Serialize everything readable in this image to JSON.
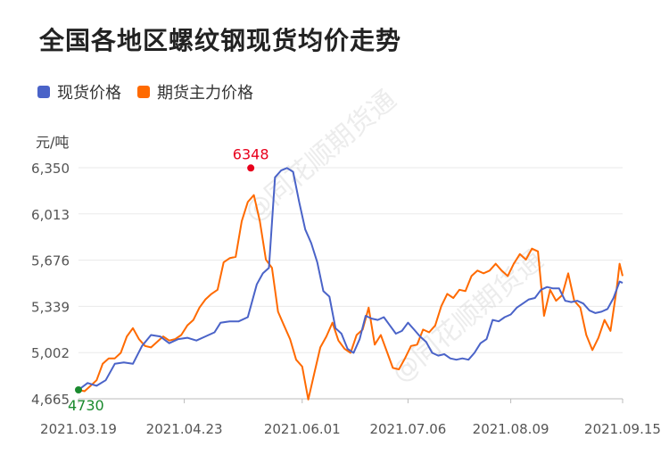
{
  "title": "全国各地区螺纹钢现货均价走势",
  "legend": [
    {
      "name": "现货价格",
      "color": "#4a63c8"
    },
    {
      "name": "期货主力价格",
      "color": "#ff6a00"
    }
  ],
  "unit": "元/吨",
  "watermarks": [
    "@同花顺期货通",
    "@同花顺期货通"
  ],
  "chart_data": {
    "type": "line",
    "ylim": [
      4665,
      6350
    ],
    "y_ticks": [
      "4,665",
      "5,002",
      "5,339",
      "5,676",
      "6,013",
      "6,350"
    ],
    "x_ticks": [
      "2021.03.19",
      "2021.04.23",
      "2021.06.01",
      "2021.07.06",
      "2021.08.09",
      "2021.09.15"
    ],
    "x_tick_index": [
      0,
      35,
      74,
      109,
      143,
      180
    ],
    "n_points": 181,
    "annotations": {
      "max": {
        "label": "6348",
        "series": 0,
        "index": 57,
        "value": 6348,
        "color": "#e8001c"
      },
      "min": {
        "label": "4730",
        "series": 0,
        "index": 0,
        "value": 4730,
        "color": "#1a8a2e"
      }
    },
    "series": [
      {
        "name": "现货价格",
        "color": "#4a63c8",
        "points": [
          [
            0,
            4730
          ],
          [
            3,
            4780
          ],
          [
            6,
            4760
          ],
          [
            9,
            4800
          ],
          [
            12,
            4920
          ],
          [
            15,
            4930
          ],
          [
            18,
            4920
          ],
          [
            21,
            5050
          ],
          [
            24,
            5130
          ],
          [
            27,
            5120
          ],
          [
            30,
            5070
          ],
          [
            33,
            5100
          ],
          [
            36,
            5110
          ],
          [
            39,
            5090
          ],
          [
            42,
            5120
          ],
          [
            45,
            5150
          ],
          [
            47,
            5220
          ],
          [
            50,
            5230
          ],
          [
            53,
            5230
          ],
          [
            56,
            5260
          ],
          [
            59,
            5500
          ],
          [
            61,
            5580
          ],
          [
            63,
            5620
          ],
          [
            65,
            6280
          ],
          [
            67,
            6330
          ],
          [
            69,
            6348
          ],
          [
            71,
            6320
          ],
          [
            73,
            6100
          ],
          [
            75,
            5900
          ],
          [
            77,
            5800
          ],
          [
            79,
            5660
          ],
          [
            81,
            5450
          ],
          [
            83,
            5410
          ],
          [
            85,
            5180
          ],
          [
            87,
            5140
          ],
          [
            89,
            5030
          ],
          [
            91,
            5000
          ],
          [
            93,
            5100
          ],
          [
            95,
            5270
          ],
          [
            97,
            5250
          ],
          [
            99,
            5240
          ],
          [
            101,
            5260
          ],
          [
            103,
            5200
          ],
          [
            105,
            5140
          ],
          [
            107,
            5160
          ],
          [
            109,
            5220
          ],
          [
            111,
            5170
          ],
          [
            113,
            5120
          ],
          [
            115,
            5080
          ],
          [
            117,
            5000
          ],
          [
            119,
            4980
          ],
          [
            121,
            4990
          ],
          [
            123,
            4960
          ],
          [
            125,
            4950
          ],
          [
            127,
            4960
          ],
          [
            129,
            4950
          ],
          [
            131,
            5000
          ],
          [
            133,
            5070
          ],
          [
            135,
            5100
          ],
          [
            137,
            5240
          ],
          [
            139,
            5230
          ],
          [
            141,
            5260
          ],
          [
            143,
            5280
          ],
          [
            145,
            5330
          ],
          [
            147,
            5360
          ],
          [
            149,
            5390
          ],
          [
            151,
            5400
          ],
          [
            153,
            5460
          ],
          [
            155,
            5480
          ],
          [
            157,
            5470
          ],
          [
            159,
            5470
          ],
          [
            161,
            5380
          ],
          [
            163,
            5370
          ],
          [
            165,
            5380
          ],
          [
            167,
            5360
          ],
          [
            169,
            5310
          ],
          [
            171,
            5290
          ],
          [
            173,
            5300
          ],
          [
            175,
            5320
          ],
          [
            177,
            5400
          ],
          [
            179,
            5520
          ],
          [
            180,
            5510
          ]
        ]
      },
      {
        "name": "期货主力价格",
        "color": "#ff6a00",
        "points": [
          [
            0,
            4730
          ],
          [
            2,
            4720
          ],
          [
            4,
            4760
          ],
          [
            6,
            4800
          ],
          [
            8,
            4920
          ],
          [
            10,
            4960
          ],
          [
            12,
            4960
          ],
          [
            14,
            5000
          ],
          [
            16,
            5120
          ],
          [
            18,
            5180
          ],
          [
            20,
            5100
          ],
          [
            22,
            5050
          ],
          [
            24,
            5040
          ],
          [
            26,
            5080
          ],
          [
            28,
            5120
          ],
          [
            30,
            5090
          ],
          [
            32,
            5100
          ],
          [
            34,
            5130
          ],
          [
            36,
            5200
          ],
          [
            38,
            5240
          ],
          [
            40,
            5330
          ],
          [
            42,
            5390
          ],
          [
            44,
            5430
          ],
          [
            46,
            5460
          ],
          [
            48,
            5660
          ],
          [
            50,
            5690
          ],
          [
            52,
            5700
          ],
          [
            54,
            5960
          ],
          [
            56,
            6100
          ],
          [
            58,
            6150
          ],
          [
            60,
            5960
          ],
          [
            62,
            5680
          ],
          [
            64,
            5620
          ],
          [
            66,
            5300
          ],
          [
            68,
            5200
          ],
          [
            70,
            5100
          ],
          [
            72,
            4950
          ],
          [
            74,
            4900
          ],
          [
            76,
            4660
          ],
          [
            78,
            4850
          ],
          [
            80,
            5040
          ],
          [
            82,
            5120
          ],
          [
            84,
            5220
          ],
          [
            86,
            5090
          ],
          [
            88,
            5030
          ],
          [
            90,
            5000
          ],
          [
            92,
            5130
          ],
          [
            94,
            5170
          ],
          [
            96,
            5330
          ],
          [
            98,
            5060
          ],
          [
            100,
            5130
          ],
          [
            102,
            5010
          ],
          [
            104,
            4890
          ],
          [
            106,
            4880
          ],
          [
            108,
            4960
          ],
          [
            110,
            5050
          ],
          [
            112,
            5060
          ],
          [
            114,
            5170
          ],
          [
            116,
            5150
          ],
          [
            118,
            5200
          ],
          [
            120,
            5340
          ],
          [
            122,
            5430
          ],
          [
            124,
            5400
          ],
          [
            126,
            5460
          ],
          [
            128,
            5450
          ],
          [
            130,
            5560
          ],
          [
            132,
            5600
          ],
          [
            134,
            5580
          ],
          [
            136,
            5600
          ],
          [
            138,
            5650
          ],
          [
            140,
            5600
          ],
          [
            142,
            5560
          ],
          [
            144,
            5650
          ],
          [
            146,
            5720
          ],
          [
            148,
            5680
          ],
          [
            150,
            5760
          ],
          [
            152,
            5740
          ],
          [
            154,
            5270
          ],
          [
            156,
            5460
          ],
          [
            158,
            5380
          ],
          [
            160,
            5420
          ],
          [
            162,
            5580
          ],
          [
            164,
            5380
          ],
          [
            166,
            5330
          ],
          [
            168,
            5130
          ],
          [
            170,
            5020
          ],
          [
            172,
            5110
          ],
          [
            174,
            5240
          ],
          [
            176,
            5160
          ],
          [
            178,
            5460
          ],
          [
            179,
            5650
          ],
          [
            180,
            5560
          ]
        ]
      }
    ]
  }
}
